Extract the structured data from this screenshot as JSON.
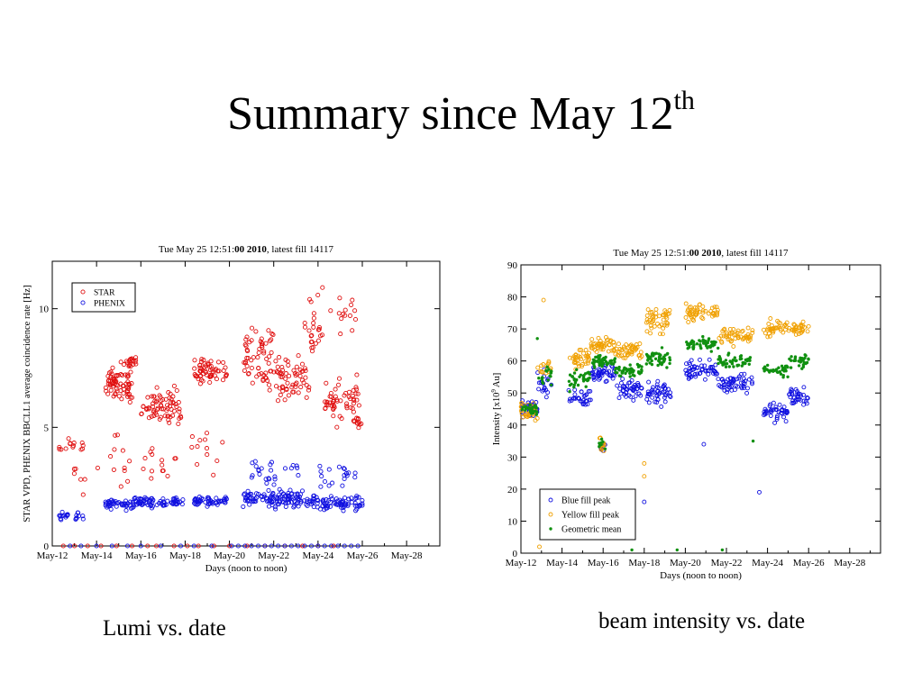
{
  "slide": {
    "title_main": "Summary since May 12",
    "title_sup": "th",
    "caption_left": "Lumi vs. date",
    "caption_right": "beam intensity vs. date"
  },
  "chart_data": [
    {
      "type": "scatter",
      "title_parts": [
        "Tue May 25 12:51:",
        "00 2010",
        ", latest fill 14117"
      ],
      "xlabel": "Days (noon to noon)",
      "ylabel": "STAR VPD, PHENIX BBCLL1 average coincidence rate [Hz]",
      "x_tick_labels": [
        "May-12",
        "May-14",
        "May-16",
        "May-18",
        "May-20",
        "May-22",
        "May-24",
        "May-26",
        "May-28"
      ],
      "x_tick_values": [
        0,
        2,
        4,
        6,
        8,
        10,
        12,
        14,
        16
      ],
      "xlim": [
        0,
        17.5
      ],
      "ylim": [
        0,
        12
      ],
      "y_ticks": [
        0,
        5,
        10
      ],
      "legend_position": "top-left",
      "series": [
        {
          "name": "STAR",
          "color": "#e01010",
          "marker": "circle",
          "clusters": [
            {
              "x": [
                0.3,
                1.4
              ],
              "y_center": 4.2,
              "y_spread": 0.6,
              "count": 14
            },
            {
              "x": [
                0.6,
                1.6
              ],
              "y_center": 2.8,
              "y_spread": 1.2,
              "count": 6
            },
            {
              "x": [
                2.4,
                3.6
              ],
              "y_center": 6.8,
              "y_spread": 1.0,
              "count": 70
            },
            {
              "x": [
                3.1,
                3.8
              ],
              "y_center": 7.8,
              "y_spread": 0.5,
              "count": 20
            },
            {
              "x": [
                2.0,
                3.5
              ],
              "y_center": 3.6,
              "y_spread": 1.5,
              "count": 12
            },
            {
              "x": [
                4.0,
                5.9
              ],
              "y_center": 5.8,
              "y_spread": 1.1,
              "count": 70
            },
            {
              "x": [
                4.1,
                5.6
              ],
              "y_center": 3.2,
              "y_spread": 1.3,
              "count": 14
            },
            {
              "x": [
                6.4,
                7.9
              ],
              "y_center": 7.4,
              "y_spread": 0.7,
              "count": 60
            },
            {
              "x": [
                6.2,
                7.8
              ],
              "y_center": 4.5,
              "y_spread": 2.0,
              "count": 12
            },
            {
              "x": [
                8.6,
                10.0
              ],
              "y_center": 8.0,
              "y_spread": 2.2,
              "count": 60
            },
            {
              "x": [
                10.0,
                11.6
              ],
              "y_center": 7.0,
              "y_spread": 1.5,
              "count": 60
            },
            {
              "x": [
                11.4,
                12.2
              ],
              "y_center": 9.0,
              "y_spread": 2.2,
              "count": 25
            },
            {
              "x": [
                12.3,
                13.9
              ],
              "y_center": 6.2,
              "y_spread": 1.3,
              "count": 55
            },
            {
              "x": [
                12.4,
                13.8
              ],
              "y_center": 9.8,
              "y_spread": 1.2,
              "count": 14
            },
            {
              "x": [
                13.5,
                14.1
              ],
              "y_center": 5.2,
              "y_spread": 0.5,
              "count": 12
            }
          ],
          "baseline_points": [
            0.5,
            1.0,
            1.6,
            2.2,
            2.9,
            3.6,
            4.3,
            4.7,
            5.5,
            6.1,
            6.6,
            7.3,
            8.0,
            8.8,
            9.6,
            10.5,
            11.3,
            12.0,
            12.7
          ]
        },
        {
          "name": "PHENIX",
          "color": "#1010e0",
          "marker": "circle",
          "clusters": [
            {
              "x": [
                0.3,
                1.4
              ],
              "y_center": 1.25,
              "y_spread": 0.25,
              "count": 22
            },
            {
              "x": [
                2.4,
                3.7
              ],
              "y_center": 1.75,
              "y_spread": 0.3,
              "count": 45
            },
            {
              "x": [
                3.7,
                5.9
              ],
              "y_center": 1.85,
              "y_spread": 0.3,
              "count": 75
            },
            {
              "x": [
                6.4,
                7.9
              ],
              "y_center": 1.9,
              "y_spread": 0.3,
              "count": 50
            },
            {
              "x": [
                8.6,
                11.4
              ],
              "y_center": 2.0,
              "y_spread": 0.5,
              "count": 110
            },
            {
              "x": [
                9.0,
                11.2
              ],
              "y_center": 3.2,
              "y_spread": 0.9,
              "count": 25
            },
            {
              "x": [
                11.4,
                14.0
              ],
              "y_center": 1.8,
              "y_spread": 0.5,
              "count": 85
            },
            {
              "x": [
                12.0,
                13.8
              ],
              "y_center": 3.0,
              "y_spread": 0.7,
              "count": 20
            }
          ],
          "baseline_points": [
            0.8,
            1.3,
            2.0,
            2.7,
            3.4,
            4.0,
            4.9,
            5.8,
            6.4,
            7.2,
            8.1,
            8.4,
            8.7,
            9.0,
            9.3,
            9.6,
            9.9,
            10.2,
            10.5,
            10.8,
            11.1,
            11.4,
            11.7,
            12.0,
            12.3,
            12.6,
            12.9,
            13.2,
            13.5,
            13.8
          ]
        }
      ]
    },
    {
      "type": "scatter",
      "title_parts": [
        "Tue May 25 12:51:",
        "00 2010",
        ", latest fill 14117"
      ],
      "xlabel": "Days (noon to noon)",
      "ylabel_parts": [
        "Intensity [x10",
        "9",
        " Au]"
      ],
      "x_tick_labels": [
        "May-12",
        "May-14",
        "May-16",
        "May-18",
        "May-20",
        "May-22",
        "May-24",
        "May-26",
        "May-28"
      ],
      "x_tick_values": [
        0,
        2,
        4,
        6,
        8,
        10,
        12,
        14,
        16
      ],
      "xlim": [
        0,
        17.5
      ],
      "ylim": [
        0,
        90
      ],
      "y_ticks": [
        0,
        10,
        20,
        30,
        40,
        50,
        60,
        70,
        80,
        90
      ],
      "legend_position": "bottom-left",
      "series": [
        {
          "name": "Blue fill peak",
          "color": "#1010e0",
          "marker": "circle",
          "clusters": [
            {
              "x": [
                0.0,
                0.8
              ],
              "y_center": 45,
              "y_spread": 4,
              "count": 30
            },
            {
              "x": [
                0.8,
                1.5
              ],
              "y_center": 52,
              "y_spread": 7,
              "count": 18
            },
            {
              "x": [
                2.3,
                3.4
              ],
              "y_center": 48,
              "y_spread": 4,
              "count": 30
            },
            {
              "x": [
                3.4,
                4.6
              ],
              "y_center": 56,
              "y_spread": 4,
              "count": 45
            },
            {
              "x": [
                3.8,
                4.1
              ],
              "y_center": 33,
              "y_spread": 3,
              "count": 10
            },
            {
              "x": [
                4.6,
                5.9
              ],
              "y_center": 51,
              "y_spread": 4,
              "count": 45
            },
            {
              "x": [
                6.1,
                7.3
              ],
              "y_center": 50,
              "y_spread": 5,
              "count": 45
            },
            {
              "x": [
                8.0,
                9.6
              ],
              "y_center": 57,
              "y_spread": 4,
              "count": 55
            },
            {
              "x": [
                9.6,
                11.3
              ],
              "y_center": 53,
              "y_spread": 4,
              "count": 55
            },
            {
              "x": [
                11.8,
                13.0
              ],
              "y_center": 44,
              "y_spread": 4,
              "count": 40
            },
            {
              "x": [
                13.0,
                14.0
              ],
              "y_center": 49,
              "y_spread": 4,
              "count": 35
            }
          ],
          "extra_points": [
            [
              6.0,
              16
            ],
            [
              8.9,
              34
            ],
            [
              11.6,
              19
            ]
          ]
        },
        {
          "name": "Yellow fill peak",
          "color": "#f0a000",
          "marker": "circle",
          "clusters": [
            {
              "x": [
                0.0,
                0.8
              ],
              "y_center": 44,
              "y_spread": 4,
              "count": 28
            },
            {
              "x": [
                0.8,
                1.5
              ],
              "y_center": 57,
              "y_spread": 4,
              "count": 18
            },
            {
              "x": [
                2.3,
                3.4
              ],
              "y_center": 61,
              "y_spread": 4,
              "count": 35
            },
            {
              "x": [
                3.4,
                4.6
              ],
              "y_center": 65,
              "y_spread": 3,
              "count": 45
            },
            {
              "x": [
                3.8,
                4.1
              ],
              "y_center": 34,
              "y_spread": 3,
              "count": 10
            },
            {
              "x": [
                4.6,
                5.9
              ],
              "y_center": 63,
              "y_spread": 4,
              "count": 45
            },
            {
              "x": [
                6.1,
                7.3
              ],
              "y_center": 73,
              "y_spread": 6,
              "count": 45
            },
            {
              "x": [
                8.0,
                9.6
              ],
              "y_center": 75,
              "y_spread": 4,
              "count": 50
            },
            {
              "x": [
                9.6,
                11.3
              ],
              "y_center": 68,
              "y_spread": 4,
              "count": 50
            },
            {
              "x": [
                11.8,
                13.0
              ],
              "y_center": 70,
              "y_spread": 4,
              "count": 35
            },
            {
              "x": [
                13.0,
                14.0
              ],
              "y_center": 70,
              "y_spread": 3,
              "count": 30
            }
          ],
          "extra_points": [
            [
              1.1,
              79
            ],
            [
              6.0,
              24
            ],
            [
              6.0,
              28
            ],
            [
              0.9,
              2
            ]
          ]
        },
        {
          "name": "Geometric mean",
          "color": "#109010",
          "marker": "dot",
          "clusters": [
            {
              "x": [
                0.0,
                0.8
              ],
              "y_center": 45,
              "y_spread": 3,
              "count": 25
            },
            {
              "x": [
                0.8,
                1.5
              ],
              "y_center": 55,
              "y_spread": 5,
              "count": 18
            },
            {
              "x": [
                2.3,
                3.4
              ],
              "y_center": 54,
              "y_spread": 4,
              "count": 35
            },
            {
              "x": [
                3.4,
                4.6
              ],
              "y_center": 60,
              "y_spread": 3,
              "count": 45
            },
            {
              "x": [
                3.8,
                4.1
              ],
              "y_center": 34,
              "y_spread": 2,
              "count": 8
            },
            {
              "x": [
                4.6,
                5.9
              ],
              "y_center": 57,
              "y_spread": 3,
              "count": 45
            },
            {
              "x": [
                6.1,
                7.3
              ],
              "y_center": 61,
              "y_spread": 5,
              "count": 45
            },
            {
              "x": [
                8.0,
                9.6
              ],
              "y_center": 65,
              "y_spread": 3,
              "count": 50
            },
            {
              "x": [
                9.6,
                11.3
              ],
              "y_center": 60,
              "y_spread": 3,
              "count": 50
            },
            {
              "x": [
                11.8,
                13.0
              ],
              "y_center": 57,
              "y_spread": 3,
              "count": 35
            },
            {
              "x": [
                13.0,
                14.0
              ],
              "y_center": 60,
              "y_spread": 3,
              "count": 30
            }
          ],
          "extra_points": [
            [
              0.8,
              67
            ],
            [
              11.3,
              35
            ],
            [
              5.4,
              1
            ],
            [
              7.6,
              1
            ],
            [
              9.8,
              1
            ]
          ]
        }
      ]
    }
  ]
}
